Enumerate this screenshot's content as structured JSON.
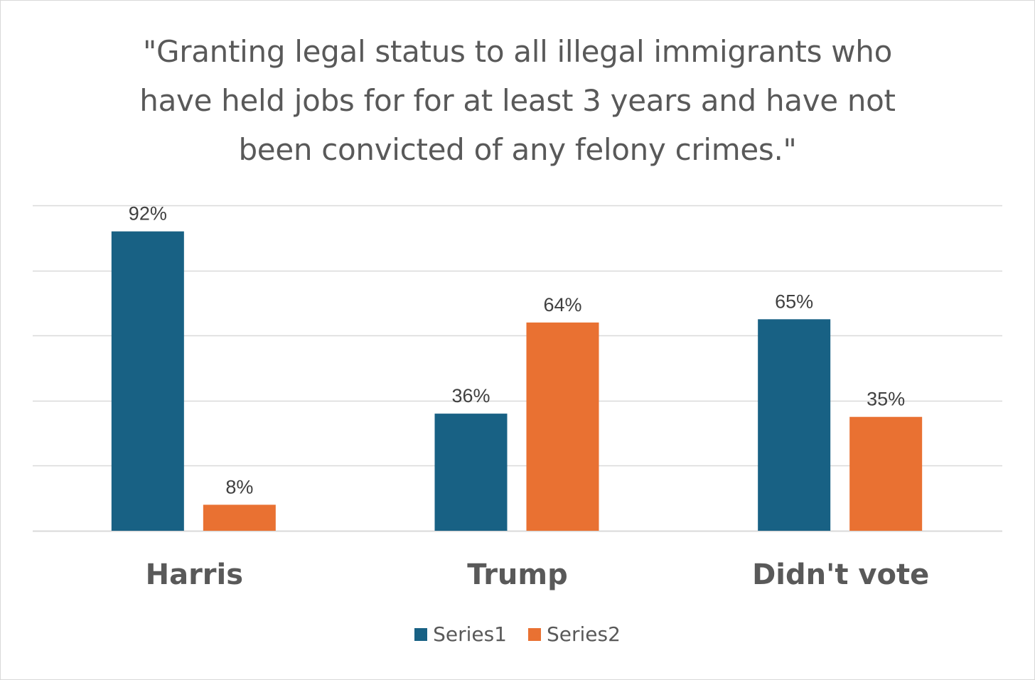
{
  "chart_data": {
    "type": "bar",
    "title_lines": [
      "\"Granting legal status to all illegal immigrants who",
      "have held jobs for for at least 3 years and have not",
      "been convicted of any felony crimes.\""
    ],
    "categories": [
      "Harris",
      "Trump",
      "Didn't vote"
    ],
    "series": [
      {
        "name": "Series1",
        "values": [
          92,
          36,
          65
        ],
        "labels": [
          "92%",
          "36%",
          "65%"
        ],
        "color": "#186184"
      },
      {
        "name": "Series2",
        "values": [
          8,
          64,
          35
        ],
        "labels": [
          "8%",
          "64%",
          "35%"
        ],
        "color": "#E97132"
      }
    ],
    "ylim": [
      0,
      100
    ],
    "y_gridline_step": 20,
    "grid": true,
    "legend_position": "bottom",
    "xlabel": "",
    "ylabel": "",
    "colors": {
      "gridline": "#d9d9d9",
      "text": "#595959",
      "data_label": "#404040"
    }
  }
}
